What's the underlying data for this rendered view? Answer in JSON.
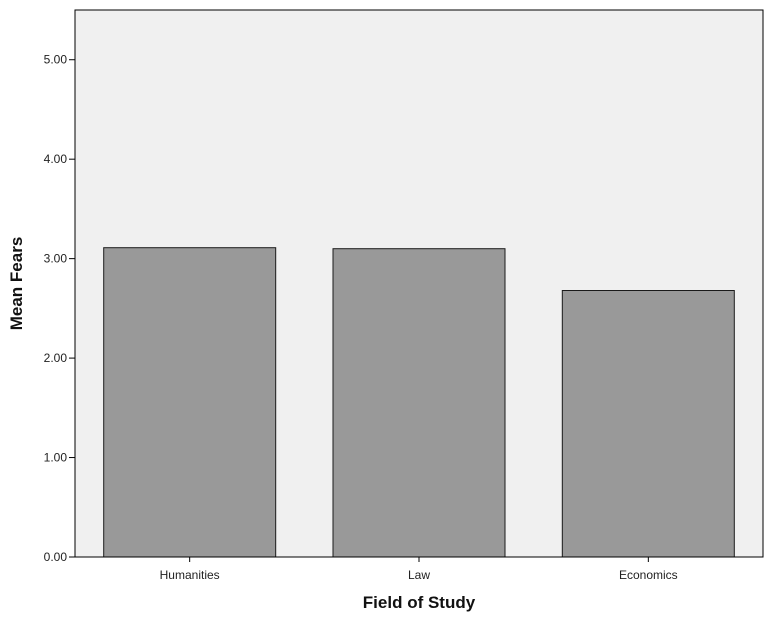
{
  "chart_data": {
    "type": "bar",
    "categories": [
      "Humanities",
      "Law",
      "Economics"
    ],
    "values": [
      3.11,
      3.1,
      2.68
    ],
    "xlabel": "Field of Study",
    "ylabel": "Mean Fears",
    "ylim": [
      0,
      5.5
    ],
    "yticks": [
      0,
      1,
      2,
      3,
      4,
      5
    ],
    "ytick_labels": [
      "0.00",
      "1.00",
      "2.00",
      "3.00",
      "4.00",
      "5.00"
    ],
    "grid": false,
    "colors": {
      "plot_background": "#f0f0f0",
      "bar_fill": "#999999",
      "bar_stroke": "#1a1a1a",
      "axis": "#000000"
    }
  }
}
